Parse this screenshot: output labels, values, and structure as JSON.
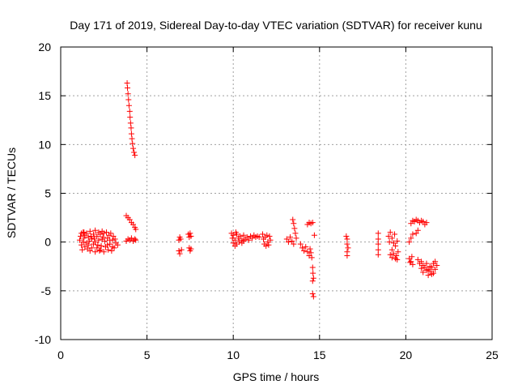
{
  "chart_data": {
    "type": "scatter",
    "title": "Day 171 of 2019, Sidereal Day-to-day VTEC variation (SDTVAR) for receiver kunu",
    "xlabel": "GPS time / hours",
    "ylabel": "SDTVAR / TECUs",
    "xlim": [
      0,
      25
    ],
    "ylim": [
      -10,
      20
    ],
    "xticks": [
      0,
      5,
      10,
      15,
      20,
      25
    ],
    "yticks": [
      -10,
      -5,
      0,
      5,
      10,
      15,
      20
    ],
    "grid": true,
    "marker": "+",
    "color": "#ff0000",
    "series": [
      {
        "name": "SDTVAR",
        "points": [
          [
            1.1,
            0.2
          ],
          [
            1.15,
            0.6
          ],
          [
            1.2,
            -0.3
          ],
          [
            1.2,
            0.9
          ],
          [
            1.25,
            -0.8
          ],
          [
            1.3,
            0.0
          ],
          [
            1.3,
            1.0
          ],
          [
            1.35,
            0.4
          ],
          [
            1.4,
            -0.5
          ],
          [
            1.4,
            0.7
          ],
          [
            1.5,
            -0.1
          ],
          [
            1.5,
            0.9
          ],
          [
            1.55,
            -0.7
          ],
          [
            1.6,
            0.5
          ],
          [
            1.65,
            0.1
          ],
          [
            1.7,
            -0.9
          ],
          [
            1.7,
            1.1
          ],
          [
            1.8,
            0.3
          ],
          [
            1.8,
            -0.6
          ],
          [
            1.9,
            0.8
          ],
          [
            1.9,
            -0.2
          ],
          [
            2.0,
            1.2
          ],
          [
            2.0,
            0.0
          ],
          [
            2.0,
            -1.0
          ],
          [
            2.1,
            0.6
          ],
          [
            2.1,
            -0.6
          ],
          [
            2.2,
            1.0
          ],
          [
            2.2,
            0.2
          ],
          [
            2.25,
            -0.9
          ],
          [
            2.3,
            0.8
          ],
          [
            2.35,
            -0.4
          ],
          [
            2.4,
            1.1
          ],
          [
            2.4,
            0.3
          ],
          [
            2.5,
            -1.0
          ],
          [
            2.5,
            0.9
          ],
          [
            2.55,
            0.1
          ],
          [
            2.6,
            -0.5
          ],
          [
            2.65,
            1.0
          ],
          [
            2.7,
            0.4
          ],
          [
            2.75,
            -0.8
          ],
          [
            2.8,
            0.7
          ],
          [
            2.85,
            -0.2
          ],
          [
            2.9,
            0.9
          ],
          [
            2.95,
            -0.9
          ],
          [
            3.0,
            0.2
          ],
          [
            3.05,
            0.6
          ],
          [
            3.1,
            -0.6
          ],
          [
            3.15,
            0.3
          ],
          [
            3.2,
            -0.1
          ],
          [
            3.3,
            -0.3
          ],
          [
            1.6,
            -0.3
          ],
          [
            1.75,
            0.6
          ],
          [
            2.15,
            -0.3
          ],
          [
            2.45,
            0.5
          ],
          [
            2.7,
            -0.3
          ],
          [
            3.0,
            -0.5
          ],
          [
            1.35,
            1.0
          ],
          [
            2.3,
            -0.8
          ],
          [
            2.85,
            0.2
          ],
          [
            1.95,
            0.4
          ],
          [
            3.85,
            16.3
          ],
          [
            3.87,
            15.8
          ],
          [
            3.9,
            15.2
          ],
          [
            3.93,
            14.6
          ],
          [
            3.96,
            14.0
          ],
          [
            4.0,
            13.4
          ],
          [
            4.02,
            12.8
          ],
          [
            4.05,
            12.2
          ],
          [
            4.08,
            11.7
          ],
          [
            4.1,
            11.1
          ],
          [
            4.13,
            10.6
          ],
          [
            4.16,
            10.1
          ],
          [
            4.2,
            9.6
          ],
          [
            4.25,
            9.2
          ],
          [
            4.3,
            8.9
          ],
          [
            3.8,
            2.7
          ],
          [
            3.9,
            2.5
          ],
          [
            4.0,
            2.3
          ],
          [
            4.1,
            2.0
          ],
          [
            4.2,
            1.8
          ],
          [
            4.3,
            1.5
          ],
          [
            4.35,
            1.3
          ],
          [
            3.8,
            0.1
          ],
          [
            3.9,
            0.3
          ],
          [
            4.0,
            0.2
          ],
          [
            4.1,
            0.4
          ],
          [
            4.2,
            0.1
          ],
          [
            4.3,
            0.3
          ],
          [
            4.35,
            0.2
          ],
          [
            6.85,
            0.2
          ],
          [
            6.9,
            0.5
          ],
          [
            6.95,
            0.3
          ],
          [
            6.85,
            -0.9
          ],
          [
            6.9,
            -1.2
          ],
          [
            7.0,
            -0.8
          ],
          [
            7.4,
            0.8
          ],
          [
            7.45,
            0.5
          ],
          [
            7.5,
            0.9
          ],
          [
            7.55,
            0.6
          ],
          [
            7.45,
            -0.6
          ],
          [
            7.5,
            -0.9
          ],
          [
            7.55,
            -0.7
          ],
          [
            9.9,
            0.9
          ],
          [
            9.95,
            0.4
          ],
          [
            10.0,
            -0.1
          ],
          [
            10.0,
            0.7
          ],
          [
            10.1,
            0.2
          ],
          [
            10.1,
            -0.4
          ],
          [
            10.2,
            0.8
          ],
          [
            10.3,
            0.4
          ],
          [
            10.35,
            0.0
          ],
          [
            10.4,
            0.6
          ],
          [
            10.5,
            0.2
          ],
          [
            10.6,
            0.7
          ],
          [
            10.7,
            0.3
          ],
          [
            10.8,
            0.5
          ],
          [
            10.9,
            0.2
          ],
          [
            11.0,
            0.6
          ],
          [
            11.1,
            0.4
          ],
          [
            11.2,
            0.7
          ],
          [
            11.3,
            0.5
          ],
          [
            11.4,
            0.6
          ],
          [
            10.2,
            -0.2
          ],
          [
            10.5,
            -0.1
          ],
          [
            10.15,
            1.0
          ],
          [
            10.6,
            0.1
          ],
          [
            11.5,
            0.5
          ],
          [
            11.7,
            0.8
          ],
          [
            11.75,
            0.3
          ],
          [
            11.8,
            -0.2
          ],
          [
            11.85,
            0.5
          ],
          [
            11.9,
            -0.4
          ],
          [
            11.95,
            0.7
          ],
          [
            12.0,
            0.0
          ],
          [
            12.05,
            -0.3
          ],
          [
            12.1,
            0.6
          ],
          [
            12.15,
            0.2
          ],
          [
            13.1,
            0.3
          ],
          [
            13.2,
            0.0
          ],
          [
            13.3,
            0.5
          ],
          [
            13.4,
            0.1
          ],
          [
            13.5,
            -0.2
          ],
          [
            13.45,
            2.3
          ],
          [
            13.5,
            1.9
          ],
          [
            13.55,
            1.4
          ],
          [
            13.6,
            0.9
          ],
          [
            13.65,
            0.4
          ],
          [
            13.9,
            -0.2
          ],
          [
            14.0,
            -0.6
          ],
          [
            14.1,
            -0.9
          ],
          [
            14.2,
            -0.5
          ],
          [
            14.3,
            -1.0
          ],
          [
            14.4,
            -1.4
          ],
          [
            14.45,
            -0.7
          ],
          [
            14.5,
            -1.1
          ],
          [
            14.55,
            -1.6
          ],
          [
            14.3,
            1.8
          ],
          [
            14.4,
            2.0
          ],
          [
            14.5,
            1.9
          ],
          [
            14.6,
            2.0
          ],
          [
            14.7,
            0.7
          ],
          [
            14.6,
            -2.6
          ],
          [
            14.62,
            -3.2
          ],
          [
            14.65,
            -3.7
          ],
          [
            14.6,
            -4.0
          ],
          [
            14.6,
            -5.3
          ],
          [
            14.65,
            -5.6
          ],
          [
            16.55,
            0.6
          ],
          [
            16.6,
            0.3
          ],
          [
            16.6,
            -0.2
          ],
          [
            16.65,
            -0.6
          ],
          [
            16.6,
            -1.0
          ],
          [
            16.6,
            -1.4
          ],
          [
            18.4,
            0.9
          ],
          [
            18.4,
            0.3
          ],
          [
            18.4,
            -0.2
          ],
          [
            18.4,
            -0.8
          ],
          [
            18.4,
            -1.3
          ],
          [
            19.0,
            0.6
          ],
          [
            19.05,
            0.0
          ],
          [
            19.1,
            1.0
          ],
          [
            19.2,
            0.4
          ],
          [
            19.2,
            -0.8
          ],
          [
            19.3,
            -0.1
          ],
          [
            19.35,
            0.8
          ],
          [
            19.4,
            -0.4
          ],
          [
            19.5,
            0.1
          ],
          [
            19.55,
            -1.0
          ],
          [
            19.1,
            -1.3
          ],
          [
            19.2,
            -1.6
          ],
          [
            19.3,
            -1.2
          ],
          [
            19.4,
            -1.7
          ],
          [
            19.45,
            -1.4
          ],
          [
            19.5,
            -1.8
          ],
          [
            20.2,
            -1.7
          ],
          [
            20.25,
            -2.1
          ],
          [
            20.3,
            -2.0
          ],
          [
            20.35,
            -1.5
          ],
          [
            20.4,
            -2.3
          ],
          [
            20.2,
            0.0
          ],
          [
            20.3,
            0.4
          ],
          [
            20.4,
            0.8
          ],
          [
            20.3,
            1.9
          ],
          [
            20.4,
            2.2
          ],
          [
            20.5,
            2.1
          ],
          [
            20.6,
            2.3
          ],
          [
            20.7,
            2.2
          ],
          [
            20.8,
            2.0
          ],
          [
            20.9,
            2.2
          ],
          [
            21.0,
            2.1
          ],
          [
            21.1,
            1.8
          ],
          [
            21.2,
            2.0
          ],
          [
            20.6,
            0.9
          ],
          [
            20.7,
            1.2
          ],
          [
            20.7,
            -1.8
          ],
          [
            20.8,
            -2.2
          ],
          [
            20.9,
            -2.0
          ],
          [
            21.0,
            -2.4
          ],
          [
            21.1,
            -2.6
          ],
          [
            21.2,
            -2.2
          ],
          [
            21.3,
            -2.8
          ],
          [
            21.4,
            -3.0
          ],
          [
            21.5,
            -2.6
          ],
          [
            21.6,
            -3.2
          ],
          [
            21.7,
            -2.8
          ],
          [
            21.8,
            -2.4
          ],
          [
            21.7,
            -2.0
          ],
          [
            21.6,
            -2.2
          ],
          [
            21.4,
            -2.5
          ],
          [
            21.2,
            -2.9
          ],
          [
            21.0,
            -3.1
          ],
          [
            20.9,
            -2.7
          ],
          [
            21.3,
            -3.4
          ],
          [
            21.5,
            -3.3
          ]
        ]
      }
    ]
  }
}
